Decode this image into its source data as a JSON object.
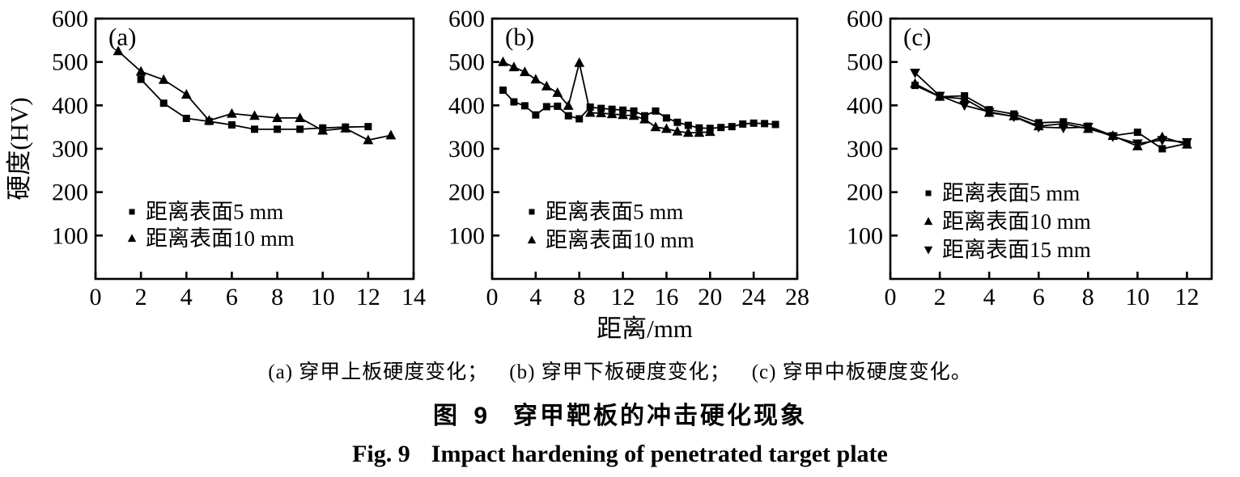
{
  "figure": {
    "sub_captions": [
      "(a) 穿甲上板硬度变化；",
      "(b) 穿甲下板硬度变化；",
      "(c) 穿甲中板硬度变化。"
    ],
    "title_zh_prefix": "图 9",
    "title_zh": "穿甲靶板的冲击硬化现象",
    "title_en_prefix": "Fig. 9",
    "title_en": "Impact hardening of penetrated target plate"
  },
  "colors": {
    "ink": "#000000",
    "background": "#ffffff"
  },
  "chart_data": [
    {
      "panel_label": "(a)",
      "type": "line",
      "title": "穿甲上板硬度变化",
      "xlabel": "",
      "ylabel": "硬度(HV)",
      "xlim": [
        0,
        14
      ],
      "ylim": [
        0,
        600
      ],
      "xticks": [
        0,
        2,
        4,
        6,
        8,
        10,
        12,
        14
      ],
      "yticks": [
        100,
        200,
        300,
        400,
        500,
        600
      ],
      "grid": false,
      "legend_position": "lower-left",
      "series": [
        {
          "name": "距离表面5 mm",
          "marker": "square",
          "x": [
            2,
            3,
            4,
            5,
            6,
            7,
            8,
            9,
            10,
            11,
            12
          ],
          "y": [
            460,
            405,
            370,
            363,
            355,
            345,
            345,
            345,
            348,
            350,
            351
          ]
        },
        {
          "name": "距离表面10 mm",
          "marker": "triangle-up",
          "x": [
            1,
            2,
            3,
            4,
            5,
            6,
            7,
            8,
            9,
            10,
            11,
            12,
            13
          ],
          "y": [
            525,
            478,
            459,
            425,
            365,
            381,
            376,
            371,
            371,
            342,
            347,
            320,
            331
          ]
        }
      ]
    },
    {
      "panel_label": "(b)",
      "type": "line",
      "title": "穿甲下板硬度变化",
      "xlabel": "距离/mm",
      "ylabel": "",
      "xlim": [
        0,
        28
      ],
      "ylim": [
        0,
        600
      ],
      "xticks": [
        0,
        4,
        8,
        12,
        16,
        20,
        24,
        28
      ],
      "yticks": [
        100,
        200,
        300,
        400,
        500,
        600
      ],
      "grid": false,
      "legend_position": "lower-left",
      "series": [
        {
          "name": "距离表面5 mm",
          "marker": "square",
          "x": [
            1,
            2,
            3,
            4,
            5,
            6,
            7,
            8,
            9,
            10,
            11,
            12,
            13,
            14,
            15,
            16,
            17,
            18,
            19,
            20,
            21,
            22,
            23,
            24,
            25,
            26
          ],
          "y": [
            435,
            408,
            399,
            378,
            397,
            398,
            376,
            369,
            396,
            393,
            391,
            389,
            387,
            376,
            387,
            371,
            361,
            354,
            348,
            347,
            349,
            351,
            357,
            359,
            358,
            356
          ]
        },
        {
          "name": "距离表面10 mm",
          "marker": "triangle-up",
          "x": [
            1,
            2,
            3,
            4,
            5,
            6,
            7,
            8,
            9,
            10,
            11,
            12,
            13,
            14,
            15,
            16,
            17,
            18,
            19,
            20
          ],
          "y": [
            500,
            488,
            477,
            460,
            444,
            429,
            399,
            498,
            383,
            382,
            380,
            378,
            376,
            368,
            350,
            346,
            340,
            337,
            337,
            339
          ]
        }
      ]
    },
    {
      "panel_label": "(c)",
      "type": "line",
      "title": "穿甲中板硬度变化",
      "xlabel": "",
      "ylabel": "",
      "xlim": [
        0,
        13
      ],
      "ylim": [
        0,
        600
      ],
      "xticks": [
        0,
        2,
        4,
        6,
        8,
        10,
        12
      ],
      "yticks": [
        100,
        200,
        300,
        400,
        500,
        600
      ],
      "grid": false,
      "legend_position": "lower-left",
      "series": [
        {
          "name": "距离表面5 mm",
          "marker": "square",
          "x": [
            1,
            2,
            3,
            4,
            5,
            6,
            7,
            8,
            9,
            10,
            11,
            12
          ],
          "y": [
            446,
            420,
            422,
            390,
            380,
            360,
            362,
            352,
            330,
            338,
            300,
            312
          ]
        },
        {
          "name": "距离表面10 mm",
          "marker": "triangle-up",
          "x": [
            1,
            2,
            3,
            4,
            5,
            6,
            7,
            8,
            9,
            10,
            11,
            12
          ],
          "y": [
            450,
            420,
            415,
            383,
            375,
            352,
            358,
            346,
            330,
            306,
            327,
            310
          ]
        },
        {
          "name": "距离表面15 mm",
          "marker": "triangle-down",
          "x": [
            1,
            2,
            3,
            4,
            5,
            6,
            7,
            8,
            9,
            10,
            11,
            12
          ],
          "y": [
            475,
            422,
            400,
            385,
            374,
            350,
            348,
            350,
            328,
            312,
            320,
            315
          ]
        }
      ]
    }
  ]
}
